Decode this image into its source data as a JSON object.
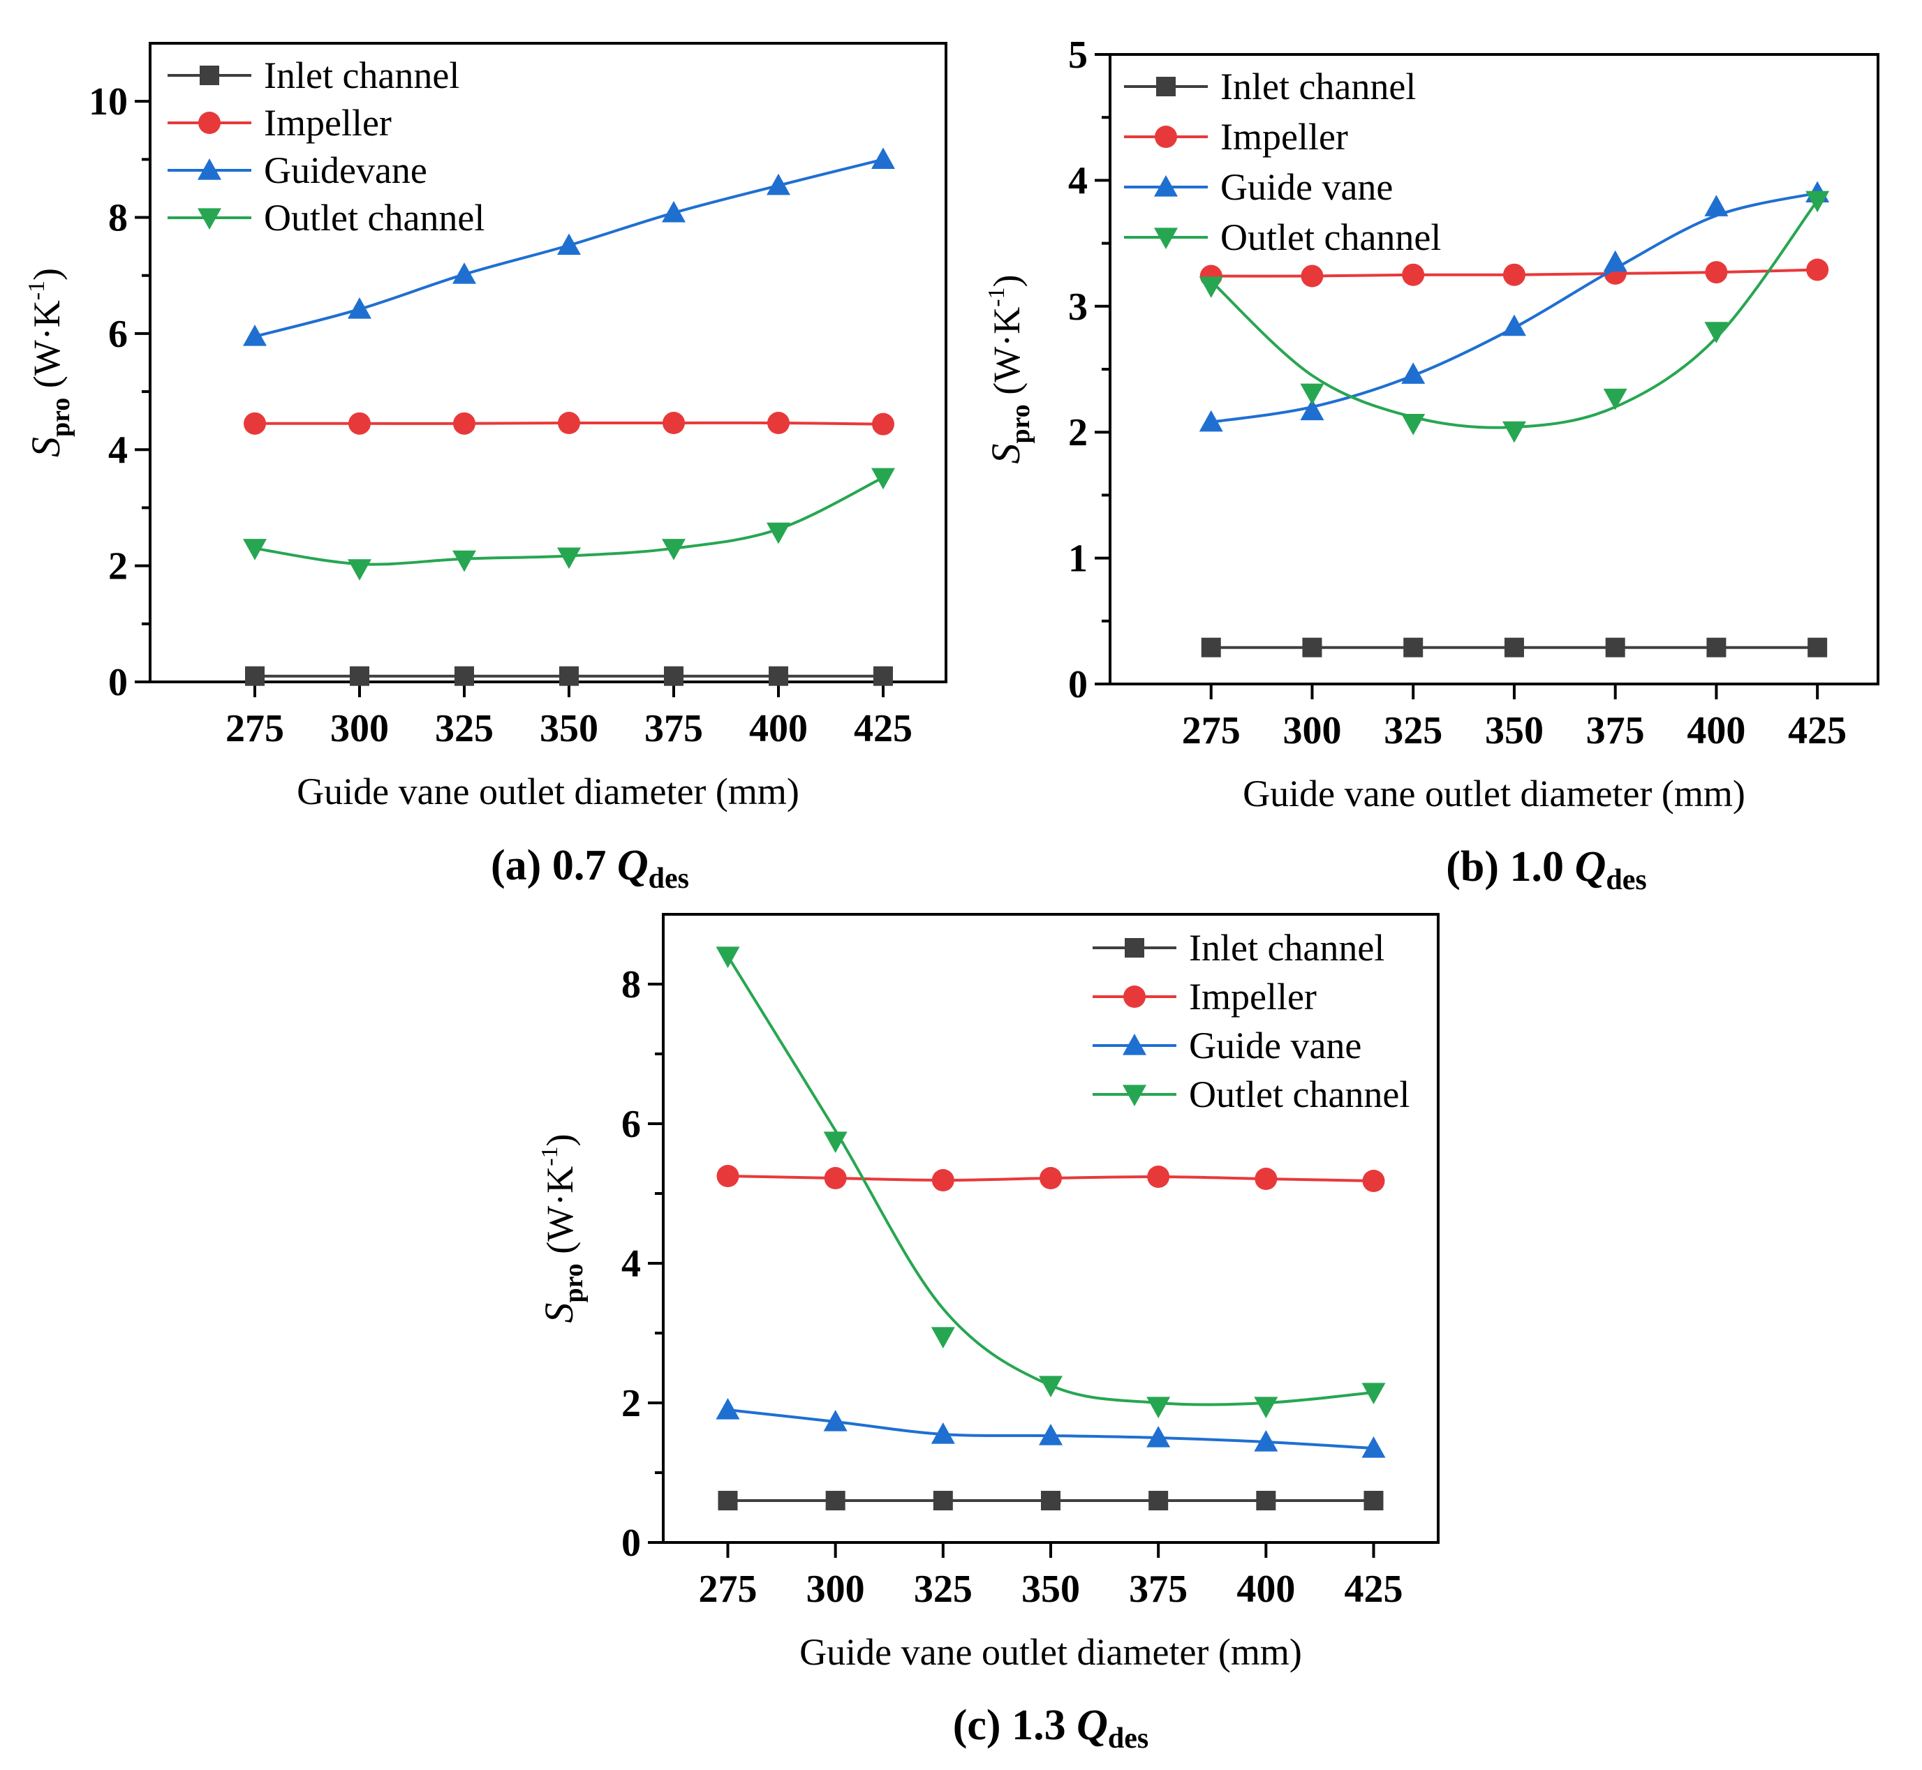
{
  "chart_data": [
    {
      "type": "line",
      "id": "a",
      "caption": {
        "prefix": "(a) 0.7 ",
        "var": "Q",
        "sub": "des"
      },
      "xlabel": "Guide vane outlet diameter (mm)",
      "ylabel": {
        "main": "S",
        "sub": "pro",
        "unit": " (W·K",
        "sup": "-1",
        "close": ")"
      },
      "x": [
        275,
        300,
        325,
        350,
        375,
        400,
        425
      ],
      "xticks": [
        275,
        300,
        325,
        350,
        375,
        400,
        425
      ],
      "xlim": [
        250,
        440
      ],
      "ylim": [
        0,
        11
      ],
      "yticks": [
        0,
        2,
        4,
        6,
        8,
        10
      ],
      "legend_position": "top-left",
      "series": [
        {
          "name": "Inlet channel",
          "color": "#3f3f3f",
          "marker": "square",
          "values": [
            0.1,
            0.1,
            0.1,
            0.1,
            0.1,
            0.1,
            0.1
          ],
          "fit": [
            0.1,
            0.1,
            0.1,
            0.1,
            0.1,
            0.1,
            0.1
          ]
        },
        {
          "name": "Impeller",
          "color": "#e8393a",
          "marker": "circle",
          "values": [
            4.45,
            4.45,
            4.45,
            4.46,
            4.46,
            4.46,
            4.44
          ],
          "fit": [
            4.45,
            4.45,
            4.45,
            4.46,
            4.46,
            4.46,
            4.44
          ]
        },
        {
          "name": "Guidevane",
          "color": "#1f6fd1",
          "marker": "triangle-up",
          "values": [
            5.95,
            6.42,
            7.02,
            7.52,
            8.08,
            8.55,
            9.0
          ],
          "fit": [
            5.95,
            6.42,
            7.02,
            7.52,
            8.08,
            8.55,
            9.0
          ]
        },
        {
          "name": "Outlet channel",
          "color": "#27a651",
          "marker": "triangle-down",
          "values": [
            2.3,
            1.95,
            2.1,
            2.15,
            2.3,
            2.58,
            3.52
          ],
          "fit": [
            2.3,
            2.03,
            2.12,
            2.17,
            2.3,
            2.63,
            3.52
          ]
        }
      ]
    },
    {
      "type": "line",
      "id": "b",
      "caption": {
        "prefix": "(b) 1.0 ",
        "var": "Q",
        "sub": "des"
      },
      "xlabel": "Guide vane outlet diameter (mm)",
      "ylabel": {
        "main": "S",
        "sub": "pro",
        "unit": " (W·K",
        "sup": "-1",
        "close": ")"
      },
      "x": [
        275,
        300,
        325,
        350,
        375,
        400,
        425
      ],
      "xticks": [
        275,
        300,
        325,
        350,
        375,
        400,
        425
      ],
      "xlim": [
        250,
        440
      ],
      "ylim": [
        0,
        5
      ],
      "yticks": [
        0,
        1,
        2,
        3,
        4,
        5
      ],
      "legend_position": "top-left",
      "series": [
        {
          "name": "Inlet channel",
          "color": "#3f3f3f",
          "marker": "square",
          "values": [
            0.29,
            0.29,
            0.29,
            0.29,
            0.29,
            0.29,
            0.29
          ],
          "fit": [
            0.29,
            0.29,
            0.29,
            0.29,
            0.29,
            0.29,
            0.29
          ]
        },
        {
          "name": "Impeller",
          "color": "#e8393a",
          "marker": "circle",
          "values": [
            3.24,
            3.24,
            3.25,
            3.25,
            3.26,
            3.27,
            3.29
          ],
          "fit": [
            3.24,
            3.24,
            3.25,
            3.25,
            3.26,
            3.27,
            3.29
          ]
        },
        {
          "name": "Guide vane",
          "color": "#1f6fd1",
          "marker": "triangle-up",
          "values": [
            2.08,
            2.17,
            2.46,
            2.84,
            3.35,
            3.79,
            3.9
          ],
          "fit": [
            2.08,
            2.2,
            2.45,
            2.83,
            3.3,
            3.72,
            3.9
          ]
        },
        {
          "name": "Outlet channel",
          "color": "#27a651",
          "marker": "triangle-down",
          "values": [
            3.16,
            2.31,
            2.07,
            2.01,
            2.27,
            2.8,
            3.84
          ],
          "fit": [
            3.2,
            2.45,
            2.12,
            2.04,
            2.2,
            2.75,
            3.84
          ]
        }
      ]
    },
    {
      "type": "line",
      "id": "c",
      "caption": {
        "prefix": "(c) 1.3 ",
        "var": "Q",
        "sub": "des"
      },
      "xlabel": "Guide vane outlet diameter (mm)",
      "ylabel": {
        "main": "S",
        "sub": "pro",
        "unit": " (W·K",
        "sup": "-1",
        "close": ")"
      },
      "x": [
        275,
        300,
        325,
        350,
        375,
        400,
        425
      ],
      "xticks": [
        275,
        300,
        325,
        350,
        375,
        400,
        425
      ],
      "xlim": [
        260,
        440
      ],
      "ylim": [
        0,
        9
      ],
      "yticks": [
        0,
        2,
        4,
        6,
        8
      ],
      "legend_position": "top-right",
      "series": [
        {
          "name": "Inlet channel",
          "color": "#3f3f3f",
          "marker": "square",
          "values": [
            0.6,
            0.6,
            0.6,
            0.6,
            0.6,
            0.6,
            0.6
          ],
          "fit": [
            0.6,
            0.6,
            0.6,
            0.6,
            0.6,
            0.6,
            0.6
          ]
        },
        {
          "name": "Impeller",
          "color": "#e8393a",
          "marker": "circle",
          "values": [
            5.25,
            5.22,
            5.19,
            5.22,
            5.24,
            5.21,
            5.18
          ],
          "fit": [
            5.25,
            5.22,
            5.19,
            5.22,
            5.24,
            5.21,
            5.18
          ]
        },
        {
          "name": "Guide vane",
          "color": "#1f6fd1",
          "marker": "triangle-up",
          "values": [
            1.9,
            1.73,
            1.55,
            1.53,
            1.5,
            1.44,
            1.35
          ],
          "fit": [
            1.9,
            1.73,
            1.55,
            1.53,
            1.5,
            1.44,
            1.35
          ]
        },
        {
          "name": "Outlet channel",
          "color": "#27a651",
          "marker": "triangle-down",
          "values": [
            8.4,
            5.75,
            2.95,
            2.25,
            1.95,
            1.95,
            2.15
          ],
          "fit": [
            8.4,
            5.9,
            3.35,
            2.25,
            2.0,
            2.0,
            2.15
          ]
        }
      ]
    }
  ]
}
